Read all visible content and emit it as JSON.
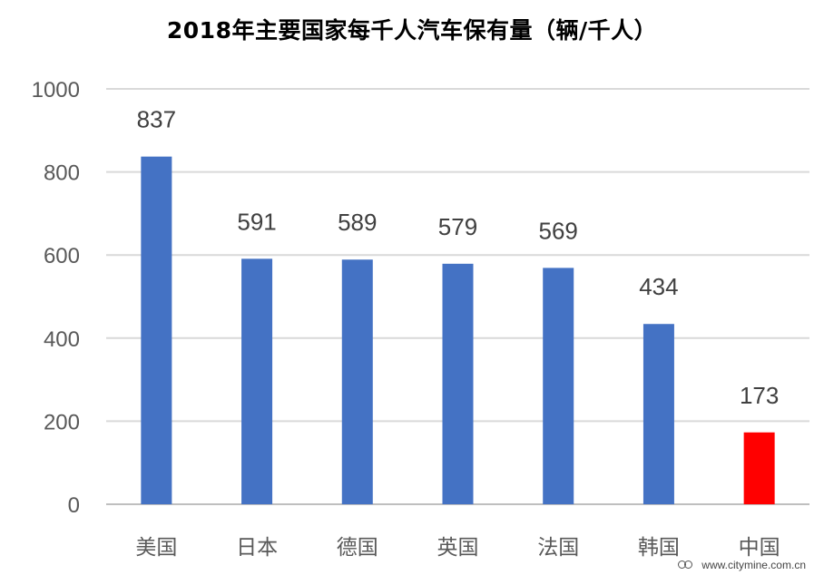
{
  "chart_data": {
    "type": "bar",
    "title": "2018年主要国家每千人汽车保有量（辆/千人）",
    "categories": [
      "美国",
      "日本",
      "德国",
      "英国",
      "法国",
      "韩国",
      "中国"
    ],
    "values": [
      837,
      591,
      589,
      579,
      569,
      434,
      173
    ],
    "ylim": [
      0,
      1000
    ],
    "yticks": [
      0,
      200,
      400,
      600,
      800,
      1000
    ],
    "grid": true,
    "colors": {
      "default": "#4472C4",
      "highlight": "#FF0000",
      "gridline": "#D9D9D9",
      "highlight_category": "中国"
    }
  },
  "watermark": {
    "text": "www.citymine.com.cn",
    "icon": "citymine-logo-icon"
  }
}
